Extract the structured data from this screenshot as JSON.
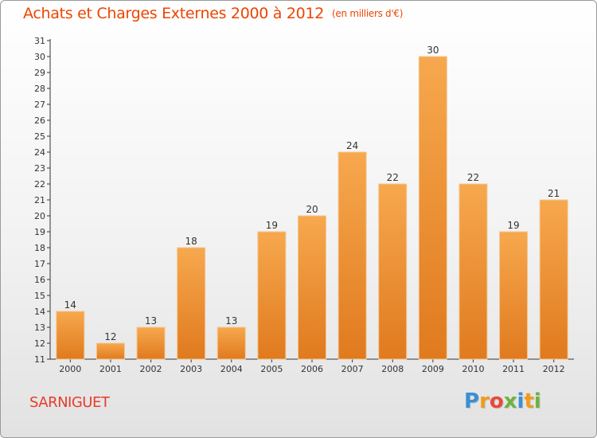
{
  "header": {
    "title": "Achats et Charges Externes 2000 à 2012",
    "subtitle": "(en milliers d'€)"
  },
  "footer": {
    "commune": "SARNIGUET",
    "brand_letters": [
      "P",
      "r",
      "o",
      "x",
      "i",
      "t",
      "i"
    ]
  },
  "colors": {
    "title": "#ee4400",
    "bar_light": "#f7a84e",
    "bar_dark": "#e07a1e",
    "brand": [
      "#3b8fd4",
      "#f19b1c",
      "#e84a3c",
      "#6cb33f",
      "#3b8fd4",
      "#f19b1c",
      "#6cb33f"
    ]
  },
  "chart_data": {
    "type": "bar",
    "categories": [
      "2000",
      "2001",
      "2002",
      "2003",
      "2004",
      "2005",
      "2006",
      "2007",
      "2008",
      "2009",
      "2010",
      "2011",
      "2012"
    ],
    "values": [
      14,
      12,
      13,
      18,
      13,
      19,
      20,
      24,
      22,
      30,
      22,
      19,
      21
    ],
    "title": "Achats et Charges Externes 2000 à 2012",
    "subtitle": "(en milliers d'€)",
    "ylim": [
      11,
      31
    ],
    "yticks": [
      11,
      12,
      13,
      14,
      15,
      16,
      17,
      18,
      19,
      20,
      21,
      22,
      23,
      24,
      25,
      26,
      27,
      28,
      29,
      30,
      31
    ],
    "grid": false,
    "data_labels": true
  }
}
